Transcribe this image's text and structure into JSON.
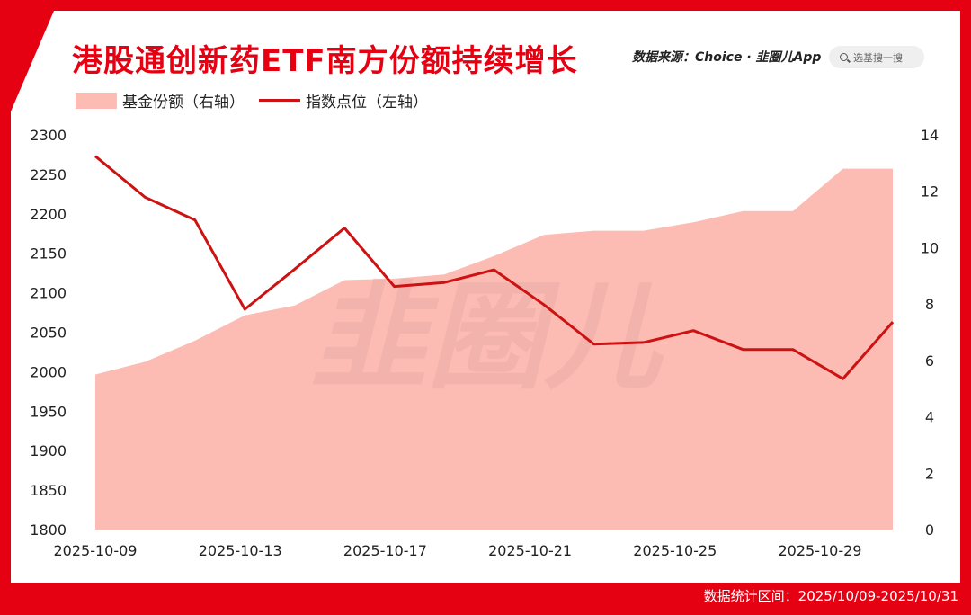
{
  "header": {
    "title": "港股通创新药ETF南方份额持续增长",
    "source": "数据来源：Choice · 韭圈儿App",
    "search_placeholder": "选基搜一搜"
  },
  "footer": {
    "stat_range": "数据统计区间：2025/10/09-2025/10/31"
  },
  "watermark": "韭圈儿",
  "colors": {
    "area": "#fcbcb4",
    "line": "#cc1212",
    "brand": "#e50012"
  },
  "chart_data": {
    "type": "line",
    "legend_position": "top-left",
    "grid": false,
    "x": [
      "2025-10-09",
      "2025-10-10",
      "2025-10-13",
      "2025-10-14",
      "2025-10-15",
      "2025-10-16",
      "2025-10-17",
      "2025-10-20",
      "2025-10-21",
      "2025-10-22",
      "2025-10-23",
      "2025-10-24",
      "2025-10-27",
      "2025-10-28",
      "2025-10-29",
      "2025-10-30",
      "2025-10-31"
    ],
    "x_tick_labels": [
      "2025-10-09",
      "2025-10-13",
      "2025-10-17",
      "2025-10-21",
      "2025-10-25",
      "2025-10-29"
    ],
    "y_left": {
      "range": [
        1800,
        2300
      ],
      "ticks": [
        1800,
        1850,
        1900,
        1950,
        2000,
        2050,
        2100,
        2150,
        2200,
        2250,
        2300
      ]
    },
    "y_right": {
      "range": [
        0,
        14
      ],
      "ticks": [
        0,
        2,
        4,
        6,
        8,
        10,
        12,
        14
      ]
    },
    "series": [
      {
        "name": "基金份额（右轴）",
        "type": "area",
        "axis": "right",
        "values": [
          5.5,
          5.95,
          6.7,
          7.6,
          7.95,
          8.85,
          8.9,
          9.05,
          9.7,
          10.45,
          10.6,
          10.6,
          10.9,
          11.3,
          11.3,
          12.8,
          12.8
        ]
      },
      {
        "name": "指数点位（左轴）",
        "type": "line",
        "axis": "left",
        "values": [
          2273,
          2221,
          2192,
          2079,
          2130,
          2182,
          2108,
          2113,
          2129,
          2085,
          2035,
          2037,
          2052,
          2028,
          2028,
          1991,
          2063
        ]
      }
    ]
  }
}
